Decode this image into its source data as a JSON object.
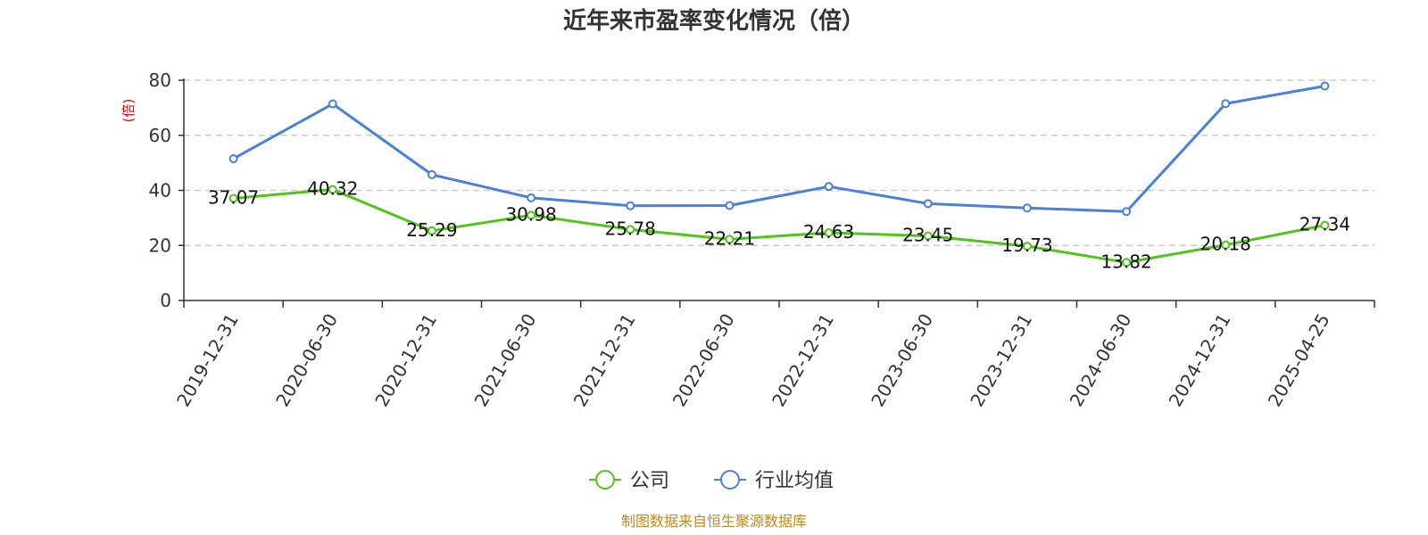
{
  "chart_data": {
    "type": "line",
    "title": "近年来市盈率变化情况（倍）",
    "ylabel": "(倍)",
    "ylim": [
      0,
      80
    ],
    "yticks": [
      0,
      20,
      40,
      60,
      80
    ],
    "grid": true,
    "legend_position": "bottom",
    "categories": [
      "2019-12-31",
      "2020-06-30",
      "2020-12-31",
      "2021-06-30",
      "2021-12-31",
      "2022-06-30",
      "2022-12-31",
      "2023-06-30",
      "2023-12-31",
      "2024-06-30",
      "2024-12-31",
      "2025-04-25"
    ],
    "series": [
      {
        "name": "公司",
        "color": "#52c41a",
        "values": [
          37.07,
          40.32,
          25.29,
          30.98,
          25.78,
          22.21,
          24.63,
          23.45,
          19.73,
          13.82,
          20.18,
          27.34
        ],
        "labels": [
          "37.07",
          "40.32",
          "25.29",
          "30.98",
          "25.78",
          "22.21",
          "24.63",
          "23.45",
          "19.73",
          "13.82",
          "20.18",
          "27.34"
        ]
      },
      {
        "name": "行业均值",
        "color": "#4a7fdc",
        "values": [
          51.5,
          71.4,
          45.7,
          37.3,
          34.4,
          34.5,
          41.4,
          35.2,
          33.6,
          32.3,
          71.5,
          77.9
        ]
      }
    ],
    "source": "制图数据来自恒生聚源数据库"
  }
}
